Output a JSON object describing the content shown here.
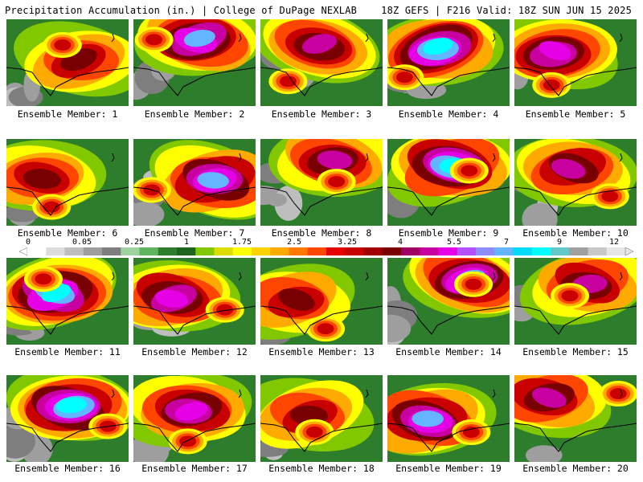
{
  "header": {
    "left": "Precipitation Accumulation (in.) | College of DuPage NEXLAB",
    "right": "18Z GEFS | F216 Valid: 18Z SUN JUN 15 2025"
  },
  "panels": [
    "Ensemble Member: 1",
    "Ensemble Member: 2",
    "Ensemble Member: 3",
    "Ensemble Member: 4",
    "Ensemble Member: 5",
    "Ensemble Member: 6",
    "Ensemble Member: 7",
    "Ensemble Member: 8",
    "Ensemble Member: 9",
    "Ensemble Member: 10",
    "Ensemble Member: 11",
    "Ensemble Member: 12",
    "Ensemble Member: 13",
    "Ensemble Member: 14",
    "Ensemble Member: 15",
    "Ensemble Member: 16",
    "Ensemble Member: 17",
    "Ensemble Member: 18",
    "Ensemble Member: 19",
    "Ensemble Member: 20"
  ],
  "colorbar": {
    "labels": [
      "0",
      "0.05",
      "0.25",
      "1",
      "1.75",
      "2.5",
      "3.25",
      "4",
      "5.5",
      "7",
      "9",
      "12"
    ],
    "colors": [
      "#ffffff",
      "#dcdcdc",
      "#bebebe",
      "#9e9e9e",
      "#7e7e7e",
      "#a0d2a0",
      "#5fb45f",
      "#2d7d2d",
      "#1e641e",
      "#82c800",
      "#dcdc00",
      "#ffff00",
      "#ffd200",
      "#ffaa00",
      "#ff7800",
      "#ff4600",
      "#e60000",
      "#c80000",
      "#a00000",
      "#780000",
      "#a00064",
      "#c800a0",
      "#e600e6",
      "#b450ff",
      "#8c8cff",
      "#64b4ff",
      "#00dcff",
      "#00ffff",
      "#64c8c8",
      "#a0a0a0",
      "#c8c8c8",
      "#e6e6e6"
    ]
  }
}
